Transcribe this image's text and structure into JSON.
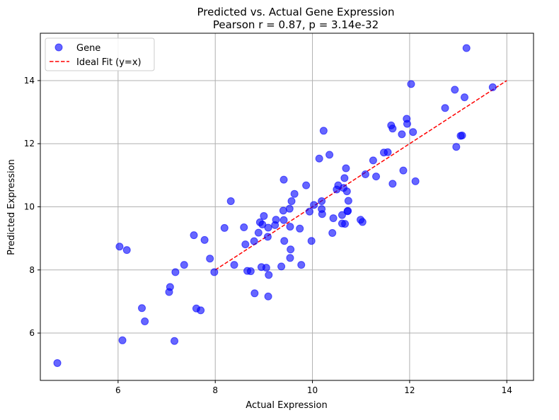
{
  "chart_data": {
    "type": "scatter",
    "title": "Predicted vs. Actual Gene Expression",
    "subtitle": "Pearson r = 0.87, p = 3.14e-32",
    "xlabel": "Actual Expression",
    "ylabel": "Predicted Expression",
    "xlim": [
      4.4,
      14.55
    ],
    "ylim": [
      4.5,
      15.5
    ],
    "xticks": [
      6,
      8,
      10,
      12,
      14
    ],
    "yticks": [
      6,
      8,
      10,
      12,
      14
    ],
    "grid": true,
    "legend_position": "top-left",
    "series": [
      {
        "name": "Gene",
        "kind": "scatter",
        "color": "#0000ff",
        "points": [
          [
            4.75,
            5.05
          ],
          [
            6.03,
            8.74
          ],
          [
            6.09,
            5.77
          ],
          [
            6.18,
            8.63
          ],
          [
            6.49,
            6.79
          ],
          [
            6.55,
            6.37
          ],
          [
            7.05,
            7.3
          ],
          [
            7.07,
            7.46
          ],
          [
            7.16,
            5.75
          ],
          [
            7.18,
            7.93
          ],
          [
            7.36,
            8.16
          ],
          [
            7.56,
            9.1
          ],
          [
            7.61,
            6.78
          ],
          [
            7.7,
            6.72
          ],
          [
            7.78,
            8.95
          ],
          [
            7.89,
            8.36
          ],
          [
            7.98,
            7.93
          ],
          [
            8.19,
            9.33
          ],
          [
            8.32,
            10.18
          ],
          [
            8.39,
            8.16
          ],
          [
            8.59,
            9.35
          ],
          [
            8.62,
            8.81
          ],
          [
            8.66,
            7.97
          ],
          [
            8.73,
            7.96
          ],
          [
            8.8,
            8.91
          ],
          [
            8.81,
            7.26
          ],
          [
            8.89,
            9.18
          ],
          [
            8.92,
            9.51
          ],
          [
            8.95,
            8.09
          ],
          [
            8.97,
            9.44
          ],
          [
            9.0,
            9.71
          ],
          [
            9.05,
            8.07
          ],
          [
            9.08,
            9.05
          ],
          [
            9.09,
            7.16
          ],
          [
            9.09,
            9.34
          ],
          [
            9.1,
            7.84
          ],
          [
            9.23,
            9.42
          ],
          [
            9.25,
            9.59
          ],
          [
            9.36,
            8.11
          ],
          [
            9.4,
            9.88
          ],
          [
            9.41,
            9.58
          ],
          [
            9.41,
            10.86
          ],
          [
            9.42,
            8.92
          ],
          [
            9.53,
            9.94
          ],
          [
            9.54,
            9.37
          ],
          [
            9.54,
            8.38
          ],
          [
            9.55,
            8.65
          ],
          [
            9.57,
            10.18
          ],
          [
            9.63,
            10.41
          ],
          [
            9.74,
            9.31
          ],
          [
            9.77,
            8.16
          ],
          [
            9.87,
            10.68
          ],
          [
            9.94,
            9.85
          ],
          [
            9.98,
            8.92
          ],
          [
            10.03,
            10.06
          ],
          [
            10.14,
            11.53
          ],
          [
            10.19,
            10.18
          ],
          [
            10.19,
            9.93
          ],
          [
            10.2,
            9.77
          ],
          [
            10.23,
            12.41
          ],
          [
            10.35,
            11.65
          ],
          [
            10.41,
            9.17
          ],
          [
            10.43,
            9.64
          ],
          [
            10.5,
            10.55
          ],
          [
            10.53,
            10.68
          ],
          [
            10.61,
            9.47
          ],
          [
            10.61,
            9.74
          ],
          [
            10.64,
            10.6
          ],
          [
            10.66,
            10.91
          ],
          [
            10.67,
            9.46
          ],
          [
            10.69,
            11.22
          ],
          [
            10.71,
            10.49
          ],
          [
            10.72,
            9.86
          ],
          [
            10.73,
            9.87
          ],
          [
            10.74,
            10.19
          ],
          [
            10.99,
            9.59
          ],
          [
            11.03,
            9.52
          ],
          [
            11.09,
            11.03
          ],
          [
            11.25,
            11.47
          ],
          [
            11.31,
            10.96
          ],
          [
            11.47,
            11.72
          ],
          [
            11.55,
            11.73
          ],
          [
            11.62,
            12.58
          ],
          [
            11.65,
            12.48
          ],
          [
            11.65,
            10.73
          ],
          [
            11.84,
            12.3
          ],
          [
            11.87,
            11.15
          ],
          [
            11.94,
            12.79
          ],
          [
            11.95,
            12.63
          ],
          [
            12.03,
            13.89
          ],
          [
            12.07,
            12.37
          ],
          [
            12.12,
            10.81
          ],
          [
            12.73,
            13.13
          ],
          [
            12.93,
            13.71
          ],
          [
            12.96,
            11.9
          ],
          [
            13.05,
            12.25
          ],
          [
            13.08,
            12.26
          ],
          [
            13.13,
            13.47
          ],
          [
            13.17,
            15.03
          ],
          [
            13.71,
            13.79
          ]
        ]
      },
      {
        "name": "Ideal Fit (y=x)",
        "kind": "line",
        "color": "#ff0000",
        "style": "dashed",
        "points": [
          [
            8,
            8
          ],
          [
            14,
            14
          ]
        ]
      }
    ]
  }
}
